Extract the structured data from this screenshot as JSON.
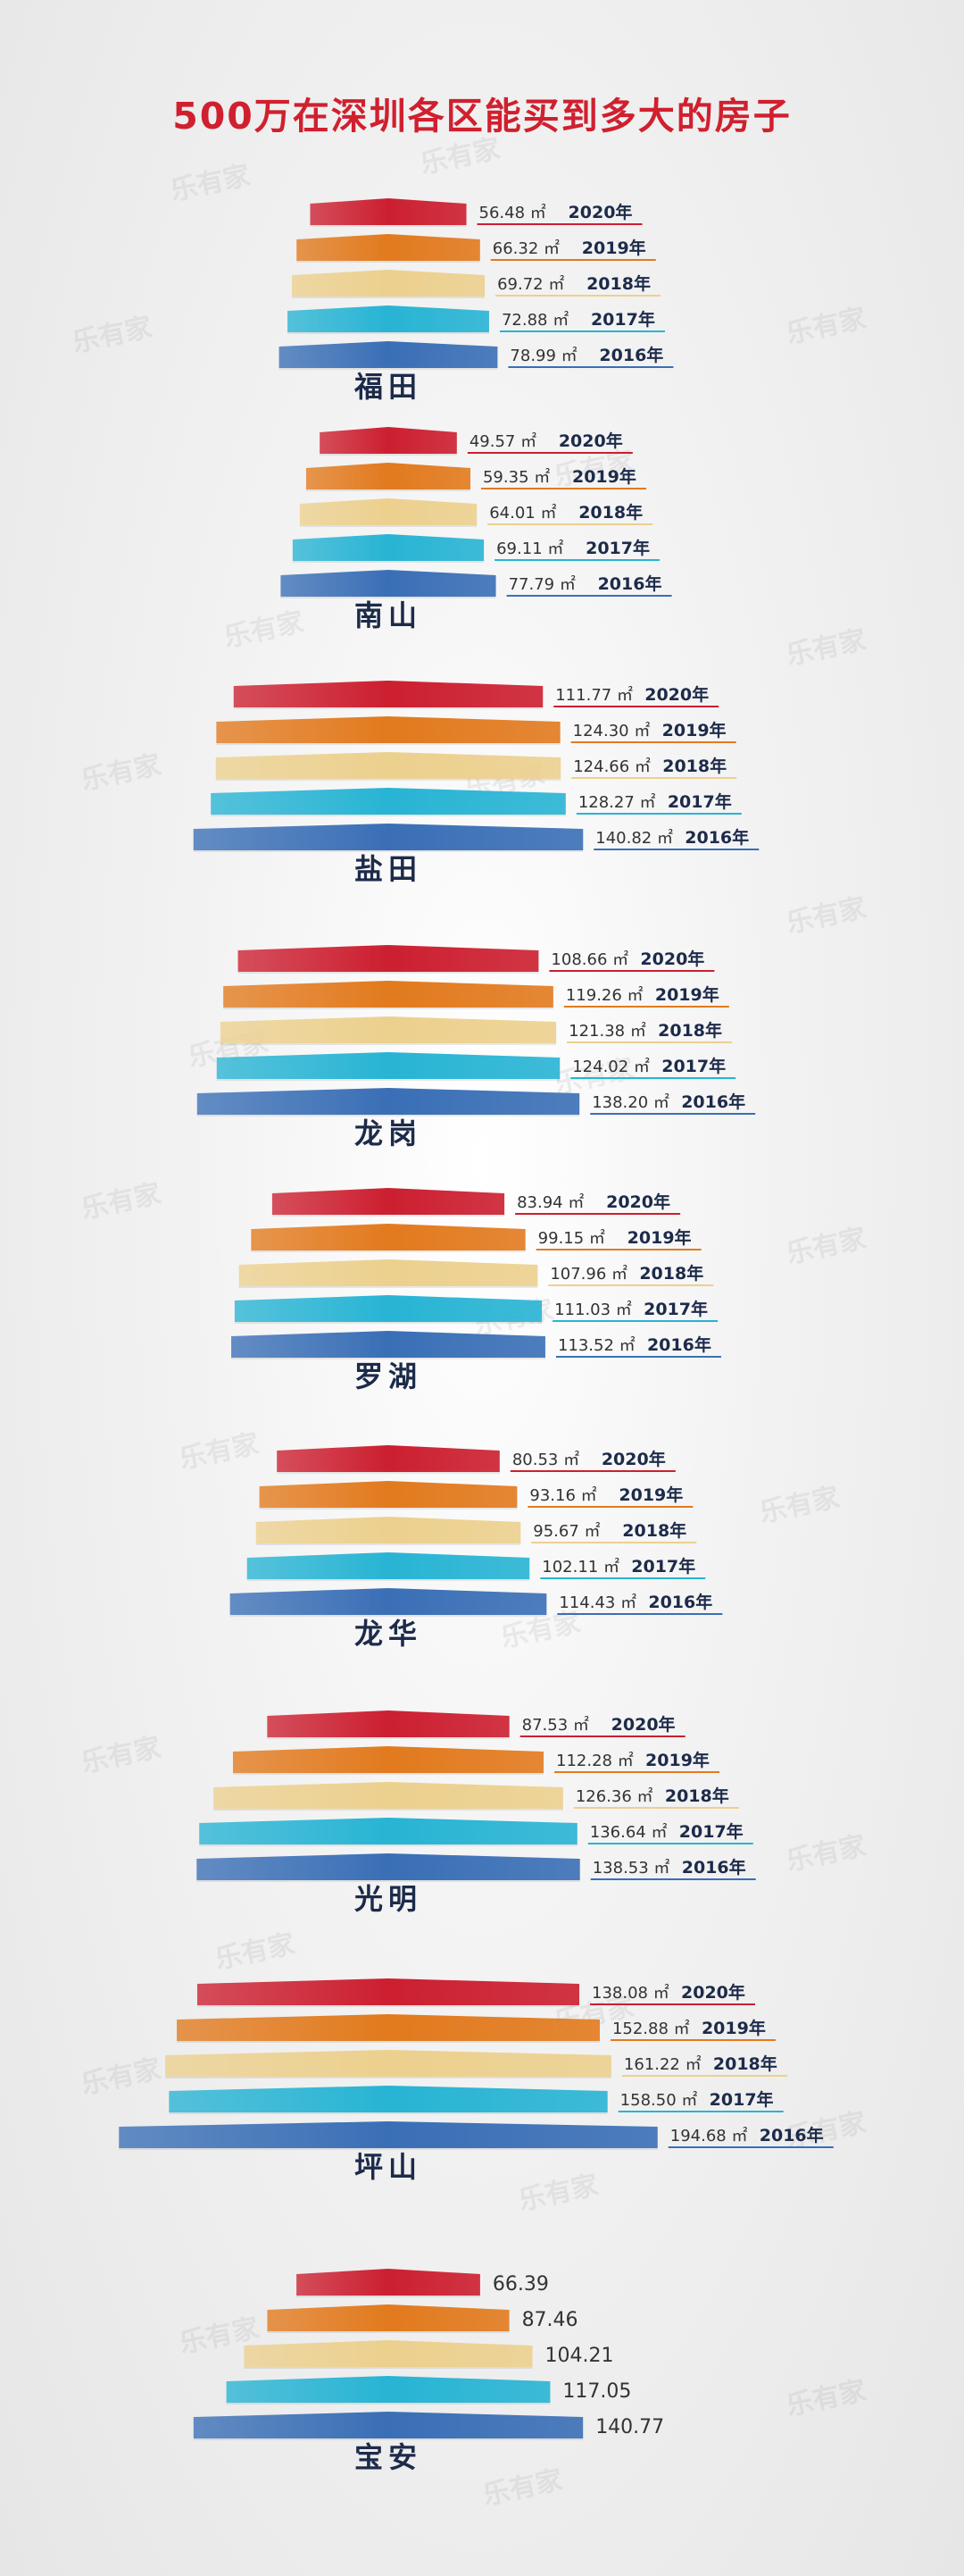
{
  "title": "500万在深圳各区能买到多大的房子",
  "watermark": "乐有家",
  "unit": "㎡",
  "colors": {
    "2020": "#cc1f30",
    "2019": "#e27a1e",
    "2018": "#ecd08e",
    "2017": "#28b4d4",
    "2016": "#3a6fb6"
  },
  "chart_data": {
    "type": "bar",
    "title": "500万在深圳各区能买到多大的房子",
    "xlabel": "",
    "ylabel": "",
    "unit": "㎡",
    "years": [
      "2020年",
      "2019年",
      "2018年",
      "2017年",
      "2016年"
    ],
    "districts": [
      {
        "name": "福田",
        "values": [
          56.48,
          66.32,
          69.72,
          72.88,
          78.99
        ]
      },
      {
        "name": "南山",
        "values": [
          49.57,
          59.35,
          64.01,
          69.11,
          77.79
        ]
      },
      {
        "name": "盐田",
        "values": [
          111.77,
          124.3,
          124.66,
          128.27,
          140.82
        ]
      },
      {
        "name": "龙岗",
        "values": [
          108.66,
          119.26,
          121.38,
          124.02,
          138.2
        ]
      },
      {
        "name": "罗湖",
        "values": [
          83.94,
          99.15,
          107.96,
          111.03,
          113.52
        ]
      },
      {
        "name": "龙华",
        "values": [
          80.53,
          93.16,
          95.67,
          102.11,
          114.43
        ]
      },
      {
        "name": "光明",
        "values": [
          87.53,
          112.28,
          126.36,
          136.64,
          138.53
        ]
      },
      {
        "name": "坪山",
        "values": [
          138.08,
          152.88,
          161.22,
          158.5,
          194.68
        ]
      },
      {
        "name": "宝安",
        "values": [
          66.39,
          87.46,
          104.21,
          117.05,
          140.77
        ],
        "show_year": false,
        "show_unit": false
      }
    ]
  }
}
